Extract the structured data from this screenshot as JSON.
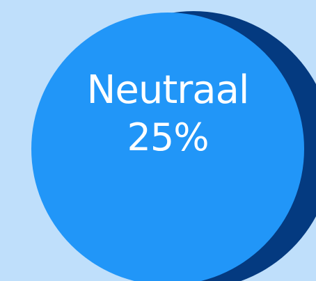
{
  "colors": {
    "background": "#bfdffb",
    "circle": "#2196f8",
    "shadow": "#043a80",
    "text": "#ffffff"
  },
  "bubble": {
    "label": "Neutraal",
    "value": "25%"
  }
}
